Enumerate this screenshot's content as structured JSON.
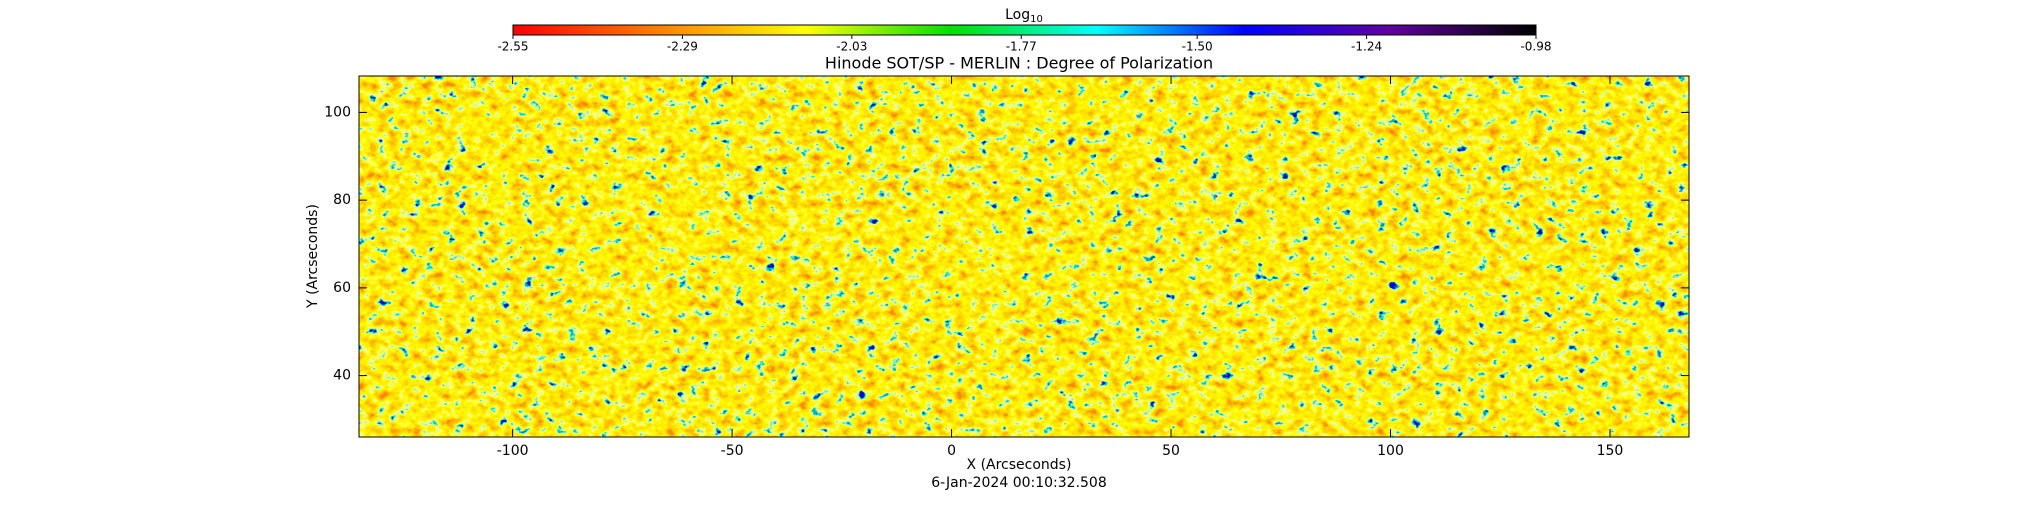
{
  "chart_data": {
    "type": "heatmap",
    "title": "Hinode SOT/SP - MERLIN : Degree of Polarization",
    "xlabel": "X (Arcseconds)",
    "ylabel": "Y (Arcseconds)",
    "footer": "6-Jan-2024 00:10:32.508",
    "xlim": [
      -135,
      168
    ],
    "xticks": [
      -100,
      -50,
      0,
      50,
      100,
      150
    ],
    "ylim": [
      26,
      108.3
    ],
    "yticks": [
      40,
      60,
      80,
      100
    ],
    "colorbar": {
      "label": "Log",
      "label_subscript": "10",
      "lim": [
        -2.55,
        -0.98
      ],
      "ticks": [
        -2.55,
        -2.29,
        -2.03,
        -1.77,
        {
          "value": -1.5,
          "label": "-1.50"
        },
        -1.24,
        -0.98
      ],
      "colormap": [
        "#ff0000",
        "#ff8000",
        "#ffff00",
        "#00e000",
        "#00ffff",
        "#0000ff",
        "#6000a0",
        "#000000"
      ]
    }
  }
}
